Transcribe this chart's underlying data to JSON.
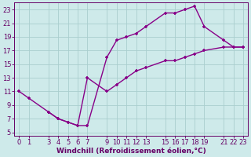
{
  "xlabel": "Windchill (Refroidissement éolien,°C)",
  "background_color": "#ceeaea",
  "grid_color": "#aacece",
  "line_color": "#880088",
  "marker_color": "#880088",
  "xlim": [
    -0.5,
    23.5
  ],
  "ylim": [
    4.5,
    24.0
  ],
  "xticks": [
    0,
    1,
    3,
    4,
    5,
    6,
    7,
    9,
    10,
    11,
    12,
    13,
    15,
    16,
    17,
    18,
    19,
    21,
    22,
    23
  ],
  "yticks": [
    5,
    7,
    9,
    11,
    13,
    15,
    17,
    19,
    21,
    23
  ],
  "x_data1": [
    0,
    1,
    3,
    4,
    5,
    6,
    7,
    9,
    10,
    11,
    12,
    13,
    15,
    16,
    17,
    18,
    19,
    21,
    22,
    23
  ],
  "y_data1": [
    11,
    10,
    8,
    7,
    6.5,
    6,
    6,
    16,
    18.5,
    19,
    19.5,
    20.5,
    22.5,
    22.5,
    23,
    23.5,
    20.5,
    18.5,
    17.5,
    17.5
  ],
  "x_data2": [
    3,
    4,
    5,
    6,
    7,
    9,
    10,
    11,
    12,
    13,
    15,
    16,
    17,
    18,
    19,
    21,
    22,
    23
  ],
  "y_data2": [
    8,
    7,
    6.5,
    6,
    13,
    11,
    12,
    13,
    14,
    14.5,
    15.5,
    15.5,
    16,
    16.5,
    17,
    17.5,
    17.5,
    17.5
  ],
  "xlabel_fontsize": 6.5,
  "tick_fontsize": 6,
  "linewidth": 1.0,
  "markersize": 3.0
}
